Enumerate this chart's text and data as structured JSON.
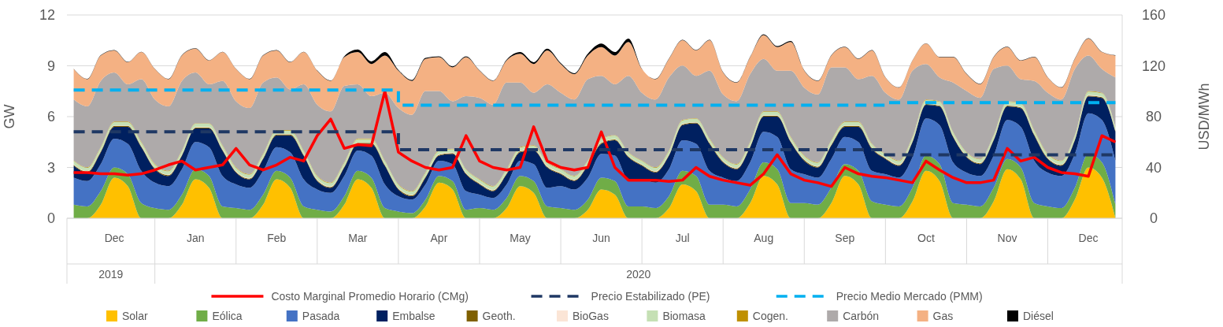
{
  "chart_data": {
    "type": "area",
    "stacked": true,
    "categories": [
      null,
      null,
      null,
      "Dec",
      null,
      null,
      null,
      null,
      null,
      "Jan",
      null,
      null,
      null,
      null,
      null,
      "Feb",
      null,
      null,
      null,
      null,
      null,
      "Mar",
      null,
      null,
      null,
      null,
      null,
      "Apr",
      null,
      null,
      null,
      null,
      null,
      "May",
      null,
      null,
      null,
      null,
      null,
      "Jun",
      null,
      null,
      null,
      null,
      null,
      "Jul",
      null,
      null,
      null,
      null,
      null,
      "Aug",
      null,
      null,
      null,
      null,
      null,
      "Sep",
      null,
      null,
      null,
      null,
      null,
      "Oct",
      null,
      null,
      null,
      null,
      null,
      "Nov",
      null,
      null,
      null,
      null,
      null,
      "Dec",
      null,
      null
    ],
    "annotations": [
      "2019",
      "2020"
    ],
    "ylabel": "GW",
    "y2label": "USD/MWh",
    "ylim": [
      0,
      12
    ],
    "yticks": [
      0,
      3,
      6,
      9,
      12
    ],
    "y2lim": [
      0,
      160
    ],
    "y2ticks": [
      0,
      40,
      80,
      120,
      160
    ],
    "grid": "y",
    "legend": "bottom",
    "series": [
      {
        "name": "Solar",
        "color": "#ffc000",
        "values": [
          0,
          0,
          0.8,
          2.4,
          1.9,
          0,
          0,
          0,
          0.8,
          2.3,
          1.8,
          0,
          0,
          0,
          0.8,
          2.3,
          1.8,
          0,
          0,
          0,
          0.8,
          2.3,
          1.8,
          0,
          0,
          0,
          0.7,
          2.1,
          1.7,
          0,
          0,
          0,
          0.6,
          1.9,
          1.5,
          0,
          0,
          0,
          0.5,
          1.7,
          1.4,
          0,
          0,
          0,
          0.6,
          2.0,
          1.6,
          0,
          0,
          0,
          0.9,
          2.5,
          2.0,
          0,
          0,
          0,
          0.9,
          2.5,
          2.0,
          0,
          0,
          0,
          1.0,
          2.8,
          2.2,
          0,
          0,
          0,
          1.0,
          2.9,
          2.3,
          0,
          0,
          0,
          1.1,
          3.0,
          2.4,
          0
        ]
      },
      {
        "name": "Eólica",
        "color": "#70ad47",
        "values": [
          0.8,
          0.7,
          0.8,
          0.6,
          0.7,
          0.9,
          0.6,
          0.5,
          0.6,
          0.6,
          0.7,
          0.7,
          0.6,
          0.5,
          0.6,
          0.5,
          0.6,
          0.7,
          0.5,
          0.4,
          0.5,
          0.5,
          0.6,
          0.6,
          0.4,
          0.3,
          0.4,
          0.4,
          0.5,
          0.5,
          0.6,
          0.5,
          0.6,
          0.6,
          0.7,
          0.7,
          0.6,
          0.5,
          0.6,
          0.7,
          0.8,
          0.7,
          0.7,
          0.6,
          0.7,
          0.8,
          0.9,
          0.8,
          0.8,
          0.7,
          0.8,
          0.8,
          0.9,
          0.9,
          0.9,
          0.8,
          0.9,
          0.7,
          0.8,
          1.0,
          0.8,
          0.7,
          0.8,
          0.9,
          1.0,
          0.9,
          0.8,
          0.7,
          0.8,
          0.6,
          0.7,
          0.9,
          0.7,
          0.6,
          0.7,
          0.8,
          0.9,
          0.8
        ]
      },
      {
        "name": "Pasada",
        "color": "#4472c4",
        "values": [
          1.6,
          1.5,
          1.6,
          1.7,
          1.8,
          1.9,
          1.5,
          1.4,
          1.5,
          1.6,
          1.7,
          1.8,
          1.4,
          1.3,
          1.4,
          1.4,
          1.5,
          1.6,
          1.2,
          1.1,
          1.2,
          1.2,
          1.3,
          1.4,
          0.9,
          0.8,
          0.9,
          0.9,
          1.0,
          1.1,
          0.8,
          0.7,
          0.8,
          0.9,
          1.0,
          1.1,
          1.3,
          1.2,
          1.3,
          1.4,
          1.5,
          1.6,
          1.6,
          1.5,
          1.6,
          1.8,
          1.9,
          2.0,
          1.6,
          1.5,
          1.6,
          1.8,
          1.9,
          2.0,
          1.7,
          1.6,
          1.7,
          1.6,
          1.7,
          1.8,
          1.8,
          1.7,
          1.8,
          2.2,
          2.3,
          2.4,
          1.9,
          1.8,
          1.9,
          2.3,
          2.4,
          2.5,
          2.0,
          1.9,
          2.0,
          2.4,
          2.5,
          2.6
        ]
      },
      {
        "name": "Embalse",
        "color": "#002060",
        "values": [
          0.7,
          0.5,
          0.7,
          0.7,
          1.0,
          1.4,
          0.8,
          0.6,
          0.8,
          0.8,
          1.1,
          1.5,
          0.7,
          0.5,
          0.7,
          0.7,
          1.0,
          1.4,
          0.5,
          0.3,
          0.5,
          0.4,
          0.7,
          1.1,
          0.4,
          0.2,
          0.4,
          0.3,
          0.6,
          1.0,
          0.6,
          0.4,
          0.6,
          0.5,
          0.8,
          1.2,
          0.7,
          0.5,
          0.7,
          0.6,
          0.9,
          1.3,
          0.8,
          0.6,
          0.8,
          0.9,
          1.2,
          1.6,
          0.9,
          0.7,
          0.9,
          0.9,
          1.2,
          1.6,
          0.8,
          0.6,
          0.8,
          0.6,
          0.9,
          1.3,
          0.9,
          0.7,
          0.9,
          0.8,
          1.1,
          1.5,
          0.9,
          0.7,
          0.9,
          0.8,
          1.1,
          1.5,
          0.8,
          0.6,
          0.8,
          1.0,
          1.3,
          1.7
        ]
      },
      {
        "name": "Geoth.",
        "color": "#7f6000",
        "values": [
          0.05,
          0.05,
          0.05,
          0.05,
          0.05,
          0.05,
          0.05,
          0.05,
          0.05,
          0.05,
          0.05,
          0.05,
          0.05,
          0.05,
          0.05,
          0.05,
          0.05,
          0.05,
          0.05,
          0.05,
          0.05,
          0.05,
          0.05,
          0.05,
          0.05,
          0.05,
          0.05,
          0.05,
          0.05,
          0.05,
          0.05,
          0.05,
          0.05,
          0.05,
          0.05,
          0.05,
          0.05,
          0.05,
          0.05,
          0.05,
          0.05,
          0.05,
          0.05,
          0.05,
          0.05,
          0.05,
          0.05,
          0.05,
          0.05,
          0.05,
          0.05,
          0.05,
          0.05,
          0.05,
          0.05,
          0.05,
          0.05,
          0.05,
          0.05,
          0.05,
          0.05,
          0.05,
          0.05,
          0.05,
          0.05,
          0.05,
          0.05,
          0.05,
          0.05,
          0.05,
          0.05,
          0.05,
          0.05,
          0.05,
          0.05,
          0.05,
          0.05,
          0.05
        ]
      },
      {
        "name": "BioGas",
        "color": "#fbe5d6",
        "values": [
          0.03,
          0.03,
          0.03,
          0.03,
          0.03,
          0.03,
          0.03,
          0.03,
          0.03,
          0.03,
          0.03,
          0.03,
          0.03,
          0.03,
          0.03,
          0.03,
          0.03,
          0.03,
          0.03,
          0.03,
          0.03,
          0.03,
          0.03,
          0.03,
          0.03,
          0.03,
          0.03,
          0.03,
          0.03,
          0.03,
          0.03,
          0.03,
          0.03,
          0.03,
          0.03,
          0.03,
          0.03,
          0.03,
          0.03,
          0.03,
          0.03,
          0.03,
          0.03,
          0.03,
          0.03,
          0.03,
          0.03,
          0.03,
          0.03,
          0.03,
          0.03,
          0.03,
          0.03,
          0.03,
          0.03,
          0.03,
          0.03,
          0.03,
          0.03,
          0.03,
          0.03,
          0.03,
          0.03,
          0.03,
          0.03,
          0.03,
          0.03,
          0.03,
          0.03,
          0.03,
          0.03,
          0.03,
          0.03,
          0.03,
          0.03,
          0.03,
          0.03,
          0.03
        ]
      },
      {
        "name": "Biomasa",
        "color": "#c5e0b4",
        "values": [
          0.2,
          0.2,
          0.2,
          0.2,
          0.2,
          0.2,
          0.2,
          0.2,
          0.2,
          0.2,
          0.2,
          0.2,
          0.2,
          0.2,
          0.2,
          0.2,
          0.2,
          0.2,
          0.2,
          0.2,
          0.2,
          0.2,
          0.2,
          0.2,
          0.2,
          0.2,
          0.2,
          0.2,
          0.2,
          0.2,
          0.2,
          0.2,
          0.2,
          0.2,
          0.2,
          0.2,
          0.2,
          0.2,
          0.2,
          0.2,
          0.2,
          0.2,
          0.2,
          0.2,
          0.2,
          0.2,
          0.2,
          0.2,
          0.2,
          0.2,
          0.2,
          0.2,
          0.2,
          0.2,
          0.2,
          0.2,
          0.2,
          0.2,
          0.2,
          0.2,
          0.2,
          0.2,
          0.2,
          0.2,
          0.2,
          0.2,
          0.2,
          0.2,
          0.2,
          0.2,
          0.2,
          0.2,
          0.2,
          0.2,
          0.2,
          0.2,
          0.2,
          0.2
        ]
      },
      {
        "name": "Cogen.",
        "color": "#bf9000",
        "values": [
          0.03,
          0.03,
          0.03,
          0.03,
          0.03,
          0.03,
          0.03,
          0.03,
          0.03,
          0.03,
          0.03,
          0.03,
          0.03,
          0.03,
          0.03,
          0.03,
          0.03,
          0.03,
          0.03,
          0.03,
          0.03,
          0.03,
          0.03,
          0.03,
          0.03,
          0.03,
          0.03,
          0.03,
          0.03,
          0.03,
          0.03,
          0.03,
          0.03,
          0.03,
          0.03,
          0.03,
          0.03,
          0.03,
          0.03,
          0.03,
          0.03,
          0.03,
          0.03,
          0.03,
          0.03,
          0.03,
          0.03,
          0.03,
          0.03,
          0.03,
          0.03,
          0.03,
          0.03,
          0.03,
          0.03,
          0.03,
          0.03,
          0.03,
          0.03,
          0.03,
          0.03,
          0.03,
          0.03,
          0.03,
          0.03,
          0.03,
          0.03,
          0.03,
          0.03,
          0.03,
          0.03,
          0.03,
          0.03,
          0.03,
          0.03,
          0.03,
          0.03,
          0.03
        ]
      },
      {
        "name": "Carbón",
        "color": "#aeaaaa",
        "values": [
          3.6,
          3.6,
          3.9,
          2.9,
          2.2,
          3.7,
          3.8,
          3.8,
          4.1,
          3.0,
          2.3,
          3.8,
          3.9,
          3.9,
          4.2,
          3.1,
          2.4,
          3.9,
          4.2,
          4.2,
          4.5,
          3.2,
          2.5,
          4.0,
          4.5,
          4.5,
          4.8,
          3.5,
          2.8,
          4.3,
          4.8,
          4.8,
          5.1,
          3.8,
          3.1,
          4.6,
          4.5,
          4.5,
          4.8,
          3.7,
          3.0,
          4.5,
          4.0,
          4.0,
          4.3,
          3.2,
          2.5,
          4.0,
          3.7,
          3.7,
          4.0,
          3.1,
          2.4,
          3.9,
          4.0,
          4.0,
          4.3,
          3.2,
          2.5,
          4.0,
          3.6,
          3.6,
          3.9,
          2.1,
          1.4,
          2.9,
          3.6,
          3.6,
          3.9,
          2.1,
          1.4,
          2.9,
          3.6,
          3.6,
          3.9,
          2.1,
          1.4,
          2.9
        ]
      },
      {
        "name": "Gas",
        "color": "#f4b183",
        "values": [
          1.8,
          1.6,
          1.5,
          1.3,
          1.3,
          1.6,
          1.8,
          1.6,
          1.5,
          1.4,
          1.4,
          1.7,
          1.9,
          1.7,
          1.6,
          1.6,
          1.6,
          1.9,
          2.0,
          1.8,
          1.7,
          1.9,
          1.9,
          2.2,
          2.2,
          2.0,
          1.9,
          2.0,
          2.0,
          2.3,
          1.6,
          1.4,
          1.3,
          1.7,
          1.7,
          2.0,
          1.7,
          1.5,
          1.4,
          1.7,
          1.7,
          2.0,
          1.4,
          1.2,
          1.1,
          1.5,
          1.5,
          1.8,
          1.3,
          1.1,
          1.0,
          1.4,
          1.4,
          1.7,
          1.0,
          0.8,
          0.7,
          1.2,
          1.2,
          1.5,
          0.9,
          0.7,
          0.6,
          1.2,
          1.2,
          1.5,
          1.0,
          0.8,
          0.7,
          1.1,
          1.1,
          1.4,
          0.9,
          0.7,
          0.6,
          1.0,
          1.0,
          1.3
        ]
      },
      {
        "name": "Diésel",
        "color": "#000000",
        "values": [
          0.02,
          0.02,
          0.02,
          0.02,
          0.02,
          0.02,
          0.02,
          0.02,
          0.02,
          0.02,
          0.02,
          0.02,
          0.02,
          0.02,
          0.02,
          0.02,
          0.02,
          0.02,
          0.02,
          0.02,
          0.05,
          0.15,
          0.15,
          0.2,
          0.05,
          0.05,
          0.05,
          0.05,
          0.05,
          0.05,
          0.02,
          0.02,
          0.05,
          0.1,
          0.1,
          0.1,
          0.05,
          0.05,
          0.1,
          0.2,
          0.2,
          0.2,
          0.02,
          0.02,
          0.02,
          0.02,
          0.02,
          0.02,
          0.02,
          0.02,
          0.02,
          0.05,
          0.05,
          0.05,
          0.02,
          0.02,
          0.02,
          0.02,
          0.02,
          0.02,
          0.02,
          0.02,
          0.02,
          0.02,
          0.02,
          0.02,
          0.02,
          0.02,
          0.02,
          0.02,
          0.02,
          0.02,
          0.02,
          0.02,
          0.02,
          0.02,
          0.02,
          0.02
        ]
      },
      {
        "name": "Costo Marginal Promedio Horario (CMg)",
        "type": "line",
        "axis": "y2",
        "color": "#ff0000",
        "values": [
          36,
          36,
          35,
          35,
          34,
          35,
          38,
          42,
          45,
          38,
          40,
          42,
          55,
          42,
          38,
          42,
          48,
          45,
          65,
          78,
          55,
          58,
          57,
          100,
          52,
          45,
          40,
          38,
          40,
          65,
          45,
          40,
          38,
          40,
          72,
          45,
          40,
          38,
          40,
          68,
          40,
          30,
          30,
          30,
          29,
          30,
          40,
          33,
          30,
          28,
          26,
          35,
          50,
          35,
          30,
          28,
          25,
          40,
          35,
          33,
          32,
          30,
          28,
          45,
          38,
          32,
          28,
          28,
          30,
          55,
          45,
          48,
          40,
          36,
          35,
          33,
          65,
          60
        ]
      },
      {
        "name": "Precio Estabilizado (PE)",
        "type": "step",
        "axis": "y2",
        "line_style": "dashed",
        "color": "#1f3864",
        "values": [
          68,
          68,
          68,
          68,
          68,
          68,
          68,
          68,
          68,
          68,
          68,
          68,
          68,
          68,
          68,
          68,
          68,
          68,
          68,
          68,
          68,
          68,
          68,
          68,
          54,
          54,
          54,
          54,
          54,
          54,
          54,
          54,
          54,
          54,
          54,
          54,
          54,
          54,
          54,
          54,
          54,
          54,
          54,
          54,
          54,
          54,
          54,
          54,
          54,
          54,
          54,
          54,
          54,
          54,
          54,
          54,
          54,
          54,
          54,
          54,
          50,
          50,
          50,
          50,
          50,
          50,
          50,
          50,
          50,
          50,
          50,
          50,
          50,
          50,
          50,
          50,
          50,
          50
        ]
      },
      {
        "name": "Precio Medio Mercado (PMM)",
        "type": "step",
        "axis": "y2",
        "line_style": "dashed",
        "color": "#00b0f0",
        "values": [
          101,
          101,
          101,
          101,
          101,
          101,
          101,
          101,
          101,
          101,
          101,
          101,
          101,
          101,
          101,
          101,
          101,
          101,
          101,
          101,
          101,
          101,
          101,
          101,
          89,
          89,
          89,
          89,
          89,
          89,
          89,
          89,
          89,
          89,
          89,
          89,
          89,
          89,
          89,
          89,
          89,
          89,
          89,
          89,
          89,
          89,
          89,
          89,
          89,
          89,
          89,
          89,
          89,
          89,
          89,
          89,
          89,
          89,
          89,
          89,
          91,
          91,
          91,
          91,
          91,
          91,
          91,
          91,
          91,
          91,
          91,
          91,
          91,
          91,
          91,
          91,
          91,
          91
        ]
      }
    ]
  }
}
